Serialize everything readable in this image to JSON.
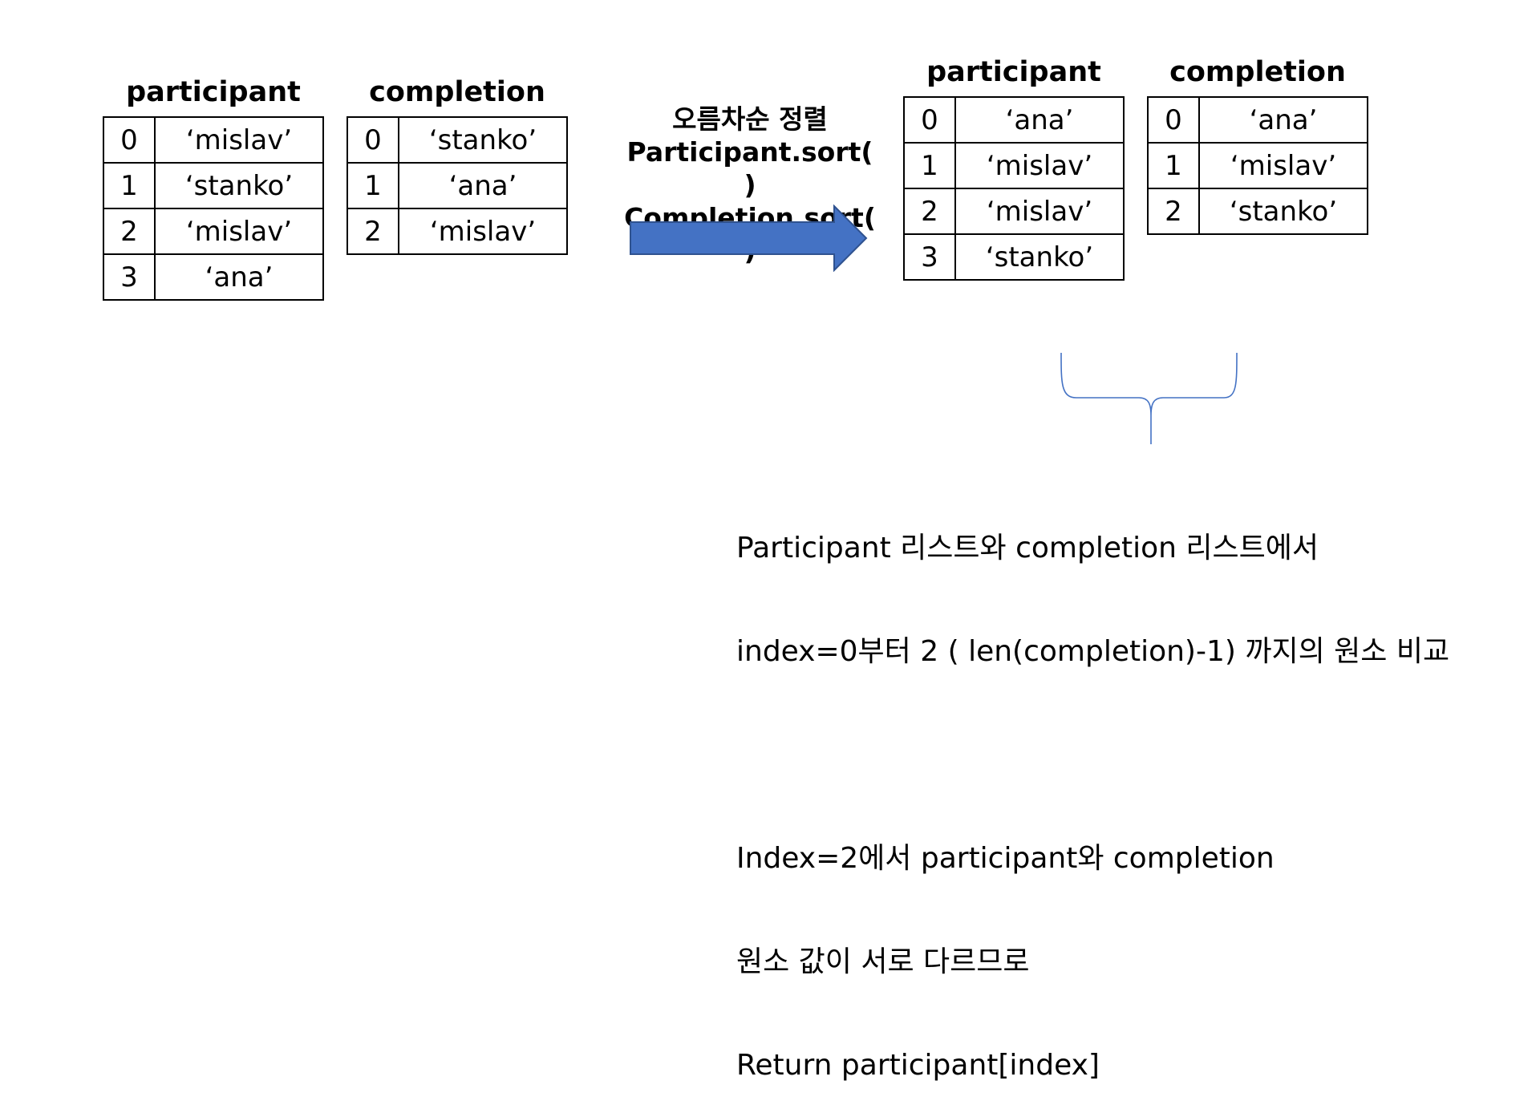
{
  "before": {
    "participant": {
      "title": "participant",
      "rows": [
        {
          "index": "0",
          "value": "‘mislav’"
        },
        {
          "index": "1",
          "value": "‘stanko’"
        },
        {
          "index": "2",
          "value": "‘mislav’"
        },
        {
          "index": "3",
          "value": "‘ana’"
        }
      ]
    },
    "completion": {
      "title": "completion",
      "rows": [
        {
          "index": "0",
          "value": "‘stanko’"
        },
        {
          "index": "1",
          "value": "‘ana’"
        },
        {
          "index": "2",
          "value": "‘mislav’"
        }
      ]
    }
  },
  "sort_caption": {
    "line1": "오름차순 정렬",
    "line2": "Participant.sort( )",
    "line3": "Completion.sort( )"
  },
  "after": {
    "participant": {
      "title": "participant",
      "rows": [
        {
          "index": "0",
          "value": "‘ana’"
        },
        {
          "index": "1",
          "value": "‘mislav’"
        },
        {
          "index": "2",
          "value": "‘mislav’"
        },
        {
          "index": "3",
          "value": "‘stanko’"
        }
      ]
    },
    "completion": {
      "title": "completion",
      "rows": [
        {
          "index": "0",
          "value": "‘ana’"
        },
        {
          "index": "1",
          "value": "‘mislav’"
        },
        {
          "index": "2",
          "value": "‘stanko’"
        }
      ]
    }
  },
  "explanation": {
    "line1": "Participant 리스트와 completion 리스트에서",
    "line2": "index=0부터 2 ( len(completion)-1) 까지의 원소 비교",
    "line3": "Index=2에서 participant와 completion",
    "line4": "원소 값이 서로 다르므로",
    "line5": "Return participant[index]"
  },
  "colors": {
    "arrow_fill": "#4472C4",
    "arrow_stroke": "#2F528F",
    "brace": "#4472C4"
  }
}
